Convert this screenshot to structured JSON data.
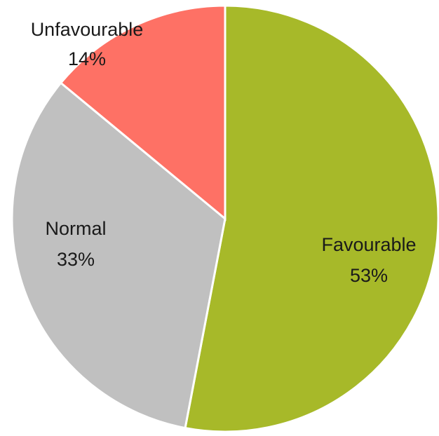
{
  "chart_data": {
    "type": "pie",
    "title": "",
    "categories": [
      "Favourable",
      "Normal",
      "Unfavourable"
    ],
    "values": [
      53,
      33,
      14
    ],
    "value_labels": [
      "53%",
      "33%",
      "14%"
    ],
    "colors": [
      "#A7B929",
      "#C0C0C0",
      "#FE7165"
    ],
    "start": "12 o'clock",
    "direction": "clockwise",
    "legend": "none",
    "data_labels": "category name and percentage"
  }
}
